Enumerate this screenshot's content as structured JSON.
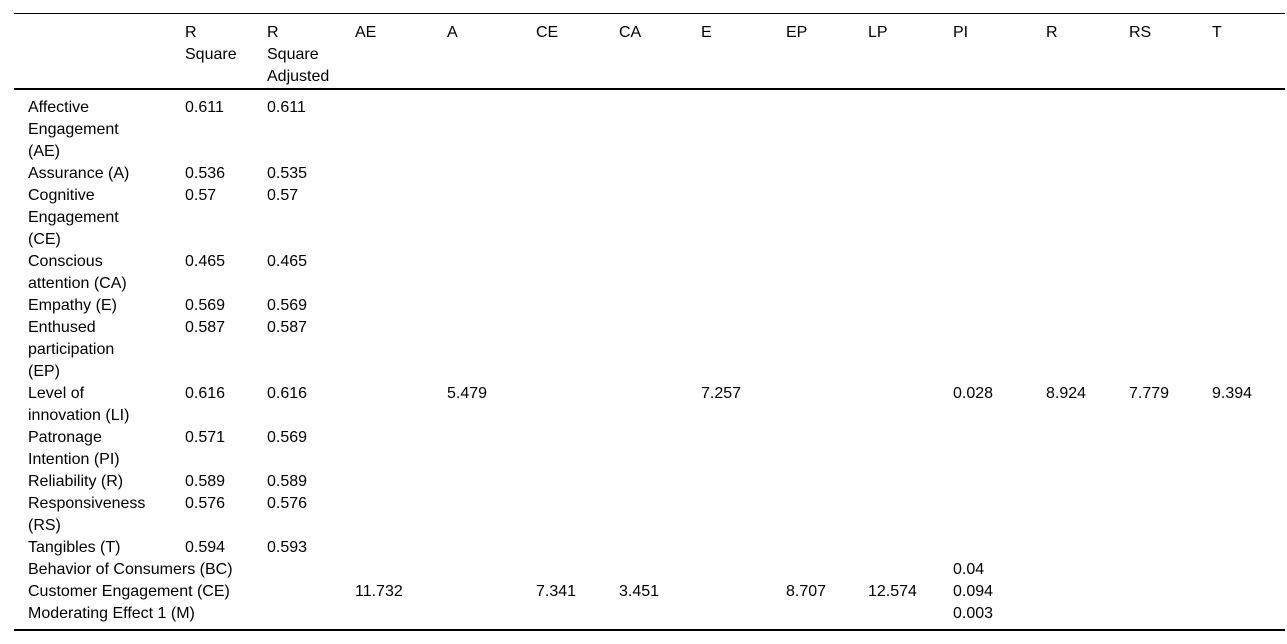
{
  "page": {
    "background_color": "#ffffff",
    "text_color": "#000000",
    "rule_color": "#000000"
  },
  "table": {
    "columns": [
      {
        "id": "variable",
        "label": ""
      },
      {
        "id": "r-square",
        "label": "R Square"
      },
      {
        "id": "r-square-adjusted",
        "label": "R Square Adjusted"
      },
      {
        "id": "ae",
        "label": "AE"
      },
      {
        "id": "a",
        "label": "A"
      },
      {
        "id": "ce",
        "label": "CE"
      },
      {
        "id": "ca",
        "label": "CA"
      },
      {
        "id": "e",
        "label": "E"
      },
      {
        "id": "ep",
        "label": "EP"
      },
      {
        "id": "lp",
        "label": "LP"
      },
      {
        "id": "pi",
        "label": "PI"
      },
      {
        "id": "r",
        "label": "R"
      },
      {
        "id": "rs",
        "label": "RS"
      },
      {
        "id": "t",
        "label": "T"
      }
    ],
    "rows": [
      {
        "label": "Affective Engagement (AE)",
        "span_label": false,
        "values": [
          "0.611",
          "0.611",
          "",
          "",
          "",
          "",
          "",
          "",
          "",
          "",
          "",
          "",
          ""
        ]
      },
      {
        "label": "Assurance (A)",
        "span_label": false,
        "values": [
          "0.536",
          "0.535",
          "",
          "",
          "",
          "",
          "",
          "",
          "",
          "",
          "",
          "",
          ""
        ]
      },
      {
        "label": "Cognitive Engagement (CE)",
        "span_label": false,
        "values": [
          "0.57",
          "0.57",
          "",
          "",
          "",
          "",
          "",
          "",
          "",
          "",
          "",
          "",
          ""
        ]
      },
      {
        "label": "Conscious attention (CA)",
        "span_label": false,
        "values": [
          "0.465",
          "0.465",
          "",
          "",
          "",
          "",
          "",
          "",
          "",
          "",
          "",
          "",
          ""
        ]
      },
      {
        "label": "Empathy (E)",
        "span_label": false,
        "values": [
          "0.569",
          "0.569",
          "",
          "",
          "",
          "",
          "",
          "",
          "",
          "",
          "",
          "",
          ""
        ]
      },
      {
        "label": "Enthused participation (EP)",
        "span_label": false,
        "values": [
          "0.587",
          "0.587",
          "",
          "",
          "",
          "",
          "",
          "",
          "",
          "",
          "",
          "",
          ""
        ]
      },
      {
        "label": "Level of innovation (LI)",
        "span_label": false,
        "values": [
          "0.616",
          "0.616",
          "",
          "5.479",
          "",
          "",
          "7.257",
          "",
          "",
          "0.028",
          "8.924",
          "7.779",
          "9.394"
        ]
      },
      {
        "label": "Patronage Intention (PI)",
        "span_label": false,
        "values": [
          "0.571",
          "0.569",
          "",
          "",
          "",
          "",
          "",
          "",
          "",
          "",
          "",
          "",
          ""
        ]
      },
      {
        "label": "Reliability (R)",
        "span_label": false,
        "values": [
          "0.589",
          "0.589",
          "",
          "",
          "",
          "",
          "",
          "",
          "",
          "",
          "",
          "",
          ""
        ]
      },
      {
        "label": "Responsiveness (RS)",
        "span_label": false,
        "values": [
          "0.576",
          "0.576",
          "",
          "",
          "",
          "",
          "",
          "",
          "",
          "",
          "",
          "",
          ""
        ]
      },
      {
        "label": "Tangibles (T)",
        "span_label": false,
        "values": [
          "0.594",
          "0.593",
          "",
          "",
          "",
          "",
          "",
          "",
          "",
          "",
          "",
          "",
          ""
        ]
      },
      {
        "label": "Behavior of Consumers (BC)",
        "span_label": true,
        "values": [
          "",
          "",
          "",
          "",
          "",
          "",
          "",
          "",
          "",
          "0.04",
          "",
          "",
          ""
        ]
      },
      {
        "label": "Customer Engagement (CE)",
        "span_label": true,
        "values": [
          "",
          "",
          "11.732",
          "",
          "7.341",
          "3.451",
          "",
          "8.707",
          "12.574",
          "0.094",
          "",
          "",
          ""
        ]
      },
      {
        "label": "Moderating Effect 1 (M)",
        "span_label": true,
        "values": [
          "",
          "",
          "",
          "",
          "",
          "",
          "",
          "",
          "",
          "0.003",
          "",
          "",
          ""
        ]
      }
    ]
  }
}
